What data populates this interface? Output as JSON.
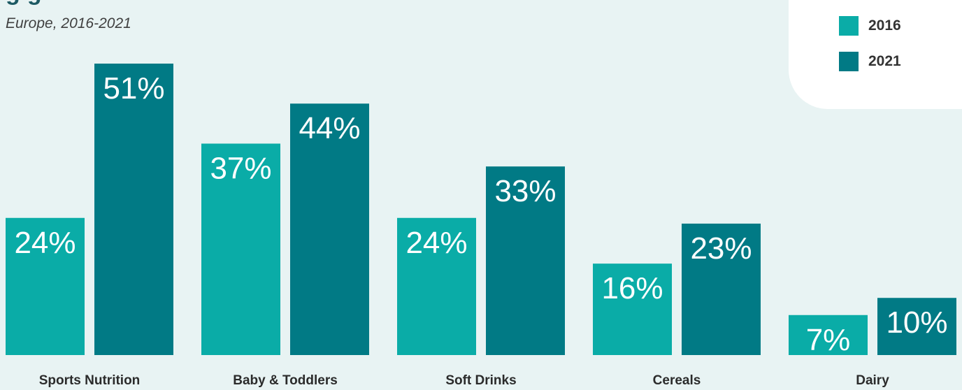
{
  "header": {
    "title_fragment": "g      g",
    "subtitle": "Europe, 2016-2021"
  },
  "legend": {
    "items": [
      {
        "label": "2016",
        "color": "#0aaca7"
      },
      {
        "label": "2021",
        "color": "#017a85"
      }
    ]
  },
  "chart_data": {
    "type": "bar",
    "title": "",
    "subtitle": "Europe, 2016-2021",
    "categories": [
      "Sports Nutrition",
      "Baby & Toddlers",
      "Soft Drinks",
      "Cereals",
      "Dairy"
    ],
    "series": [
      {
        "name": "2016",
        "values": [
          24,
          37,
          24,
          16,
          7
        ],
        "labels": [
          "24%",
          "37%",
          "24%",
          "16%",
          "7%"
        ],
        "color": "#0aaca7"
      },
      {
        "name": "2021",
        "values": [
          51,
          44,
          33,
          23,
          10
        ],
        "labels": [
          "51%",
          "44%",
          "33%",
          "23%",
          "10%"
        ],
        "color": "#017a85"
      }
    ],
    "ylim": [
      0,
      51
    ],
    "grid": false,
    "legend_position": "top-right",
    "xlabel": "",
    "ylabel": ""
  }
}
